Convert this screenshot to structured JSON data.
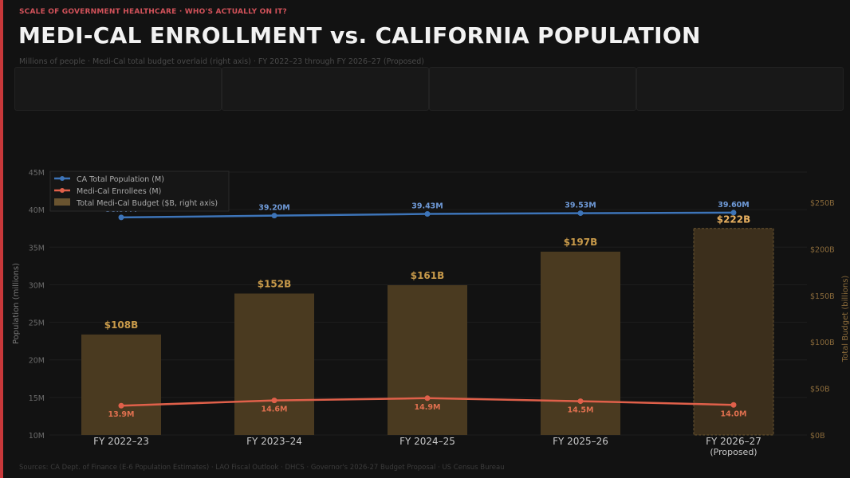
{
  "header": {
    "kicker": "SCALE OF GOVERNMENT HEALTHCARE  ·  WHO'S ACTUALLY ON IT?",
    "title": "MEDI-CAL ENROLLMENT vs. CALIFORNIA POPULATION",
    "subtitle": "Millions of people  ·  Medi-Cal total budget overlaid (right axis)  ·  FY 2022–23 through FY 2026–27 (Proposed)"
  },
  "footer": {
    "sources": "Sources: CA Dept. of Finance (E-6 Population Estimates)  ·  LAO Fiscal Outlook  ·  DHCS  ·  Governor's 2026-27 Budget Proposal  ·  US Census Bureau"
  },
  "colors": {
    "accent": "#c8383a",
    "population": "#3d74b8",
    "enrollees": "#e0604a",
    "budget": "#4a3a20",
    "budget_label": "#c89a4a"
  },
  "chart_data": {
    "type": "bar+line",
    "categories": [
      "FY 2022–23",
      "FY 2023–24",
      "FY 2024–25",
      "FY 2025–26",
      "FY 2026–27"
    ],
    "category_sublabels": [
      "",
      "",
      "",
      "",
      "(Proposed)"
    ],
    "ylabel": "Population (millions)",
    "y2label": "Total Budget (billions)",
    "ylim": [
      10,
      45
    ],
    "y2lim": [
      0,
      250
    ],
    "yticks": [
      "10M",
      "15M",
      "20M",
      "25M",
      "30M",
      "35M",
      "40M",
      "45M"
    ],
    "y2ticks": [
      "$0B",
      "$50B",
      "$100B",
      "$150B",
      "$200B",
      "$250B"
    ],
    "grid": true,
    "legend_position": "top-left",
    "series": [
      {
        "name": "CA Total Population (M)",
        "type": "line",
        "axis": "left",
        "values": [
          38.97,
          39.2,
          39.43,
          39.53,
          39.6
        ],
        "labels": [
          "38.97M",
          "39.20M",
          "39.43M",
          "39.53M",
          "39.60M"
        ]
      },
      {
        "name": "Medi-Cal Enrollees (M)",
        "type": "line",
        "axis": "left",
        "values": [
          13.9,
          14.6,
          14.9,
          14.5,
          14.0
        ],
        "labels": [
          "13.9M",
          "14.6M",
          "14.9M",
          "14.5M",
          "14.0M"
        ]
      },
      {
        "name": "Total Medi-Cal Budget ($B, right axis)",
        "type": "bar",
        "axis": "right",
        "values": [
          108,
          152,
          161,
          197,
          222
        ],
        "labels": [
          "$108B",
          "$152B",
          "$161B",
          "$197B",
          "$222B"
        ]
      }
    ]
  }
}
